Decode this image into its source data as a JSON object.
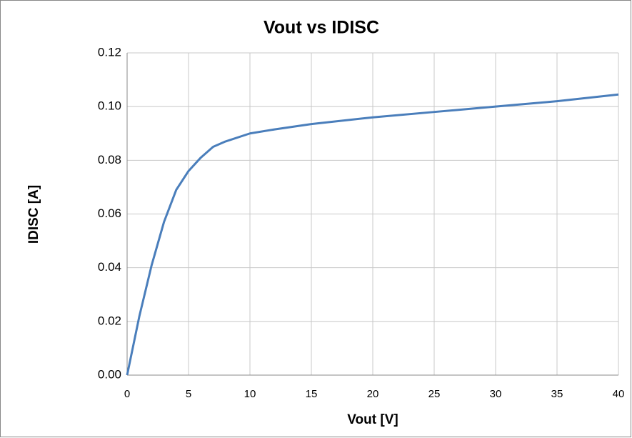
{
  "chart_data": {
    "type": "line",
    "title": "Vout vs IDISC",
    "x_label": "Vout [V]",
    "y_label": "IDISC [A]",
    "x": [
      0,
      1,
      2,
      3,
      4,
      5,
      6,
      7,
      8,
      10,
      12,
      15,
      20,
      25,
      30,
      35,
      40
    ],
    "series": [
      {
        "name": "IDISC",
        "color": "#4a7ebb",
        "values": [
          0,
          0.022,
          0.041,
          0.057,
          0.069,
          0.076,
          0.081,
          0.085,
          0.087,
          0.09,
          0.0915,
          0.0935,
          0.096,
          0.098,
          0.1,
          0.102,
          0.1045
        ]
      }
    ],
    "xlim": [
      0,
      40
    ],
    "xticks": [
      0,
      5,
      10,
      15,
      20,
      25,
      30,
      35,
      40
    ],
    "ylim": [
      0,
      0.12
    ],
    "yticks": [
      {
        "value": 0,
        "label": "0.00"
      },
      {
        "value": 0.02,
        "label": "0.02"
      },
      {
        "value": 0.04,
        "label": "0.04"
      },
      {
        "value": 0.06,
        "label": "0.06"
      },
      {
        "value": 0.08,
        "label": "0.08"
      },
      {
        "value": 0.1,
        "label": "0.10"
      },
      {
        "value": 0.12,
        "label": "0.12"
      }
    ],
    "grid": true
  }
}
